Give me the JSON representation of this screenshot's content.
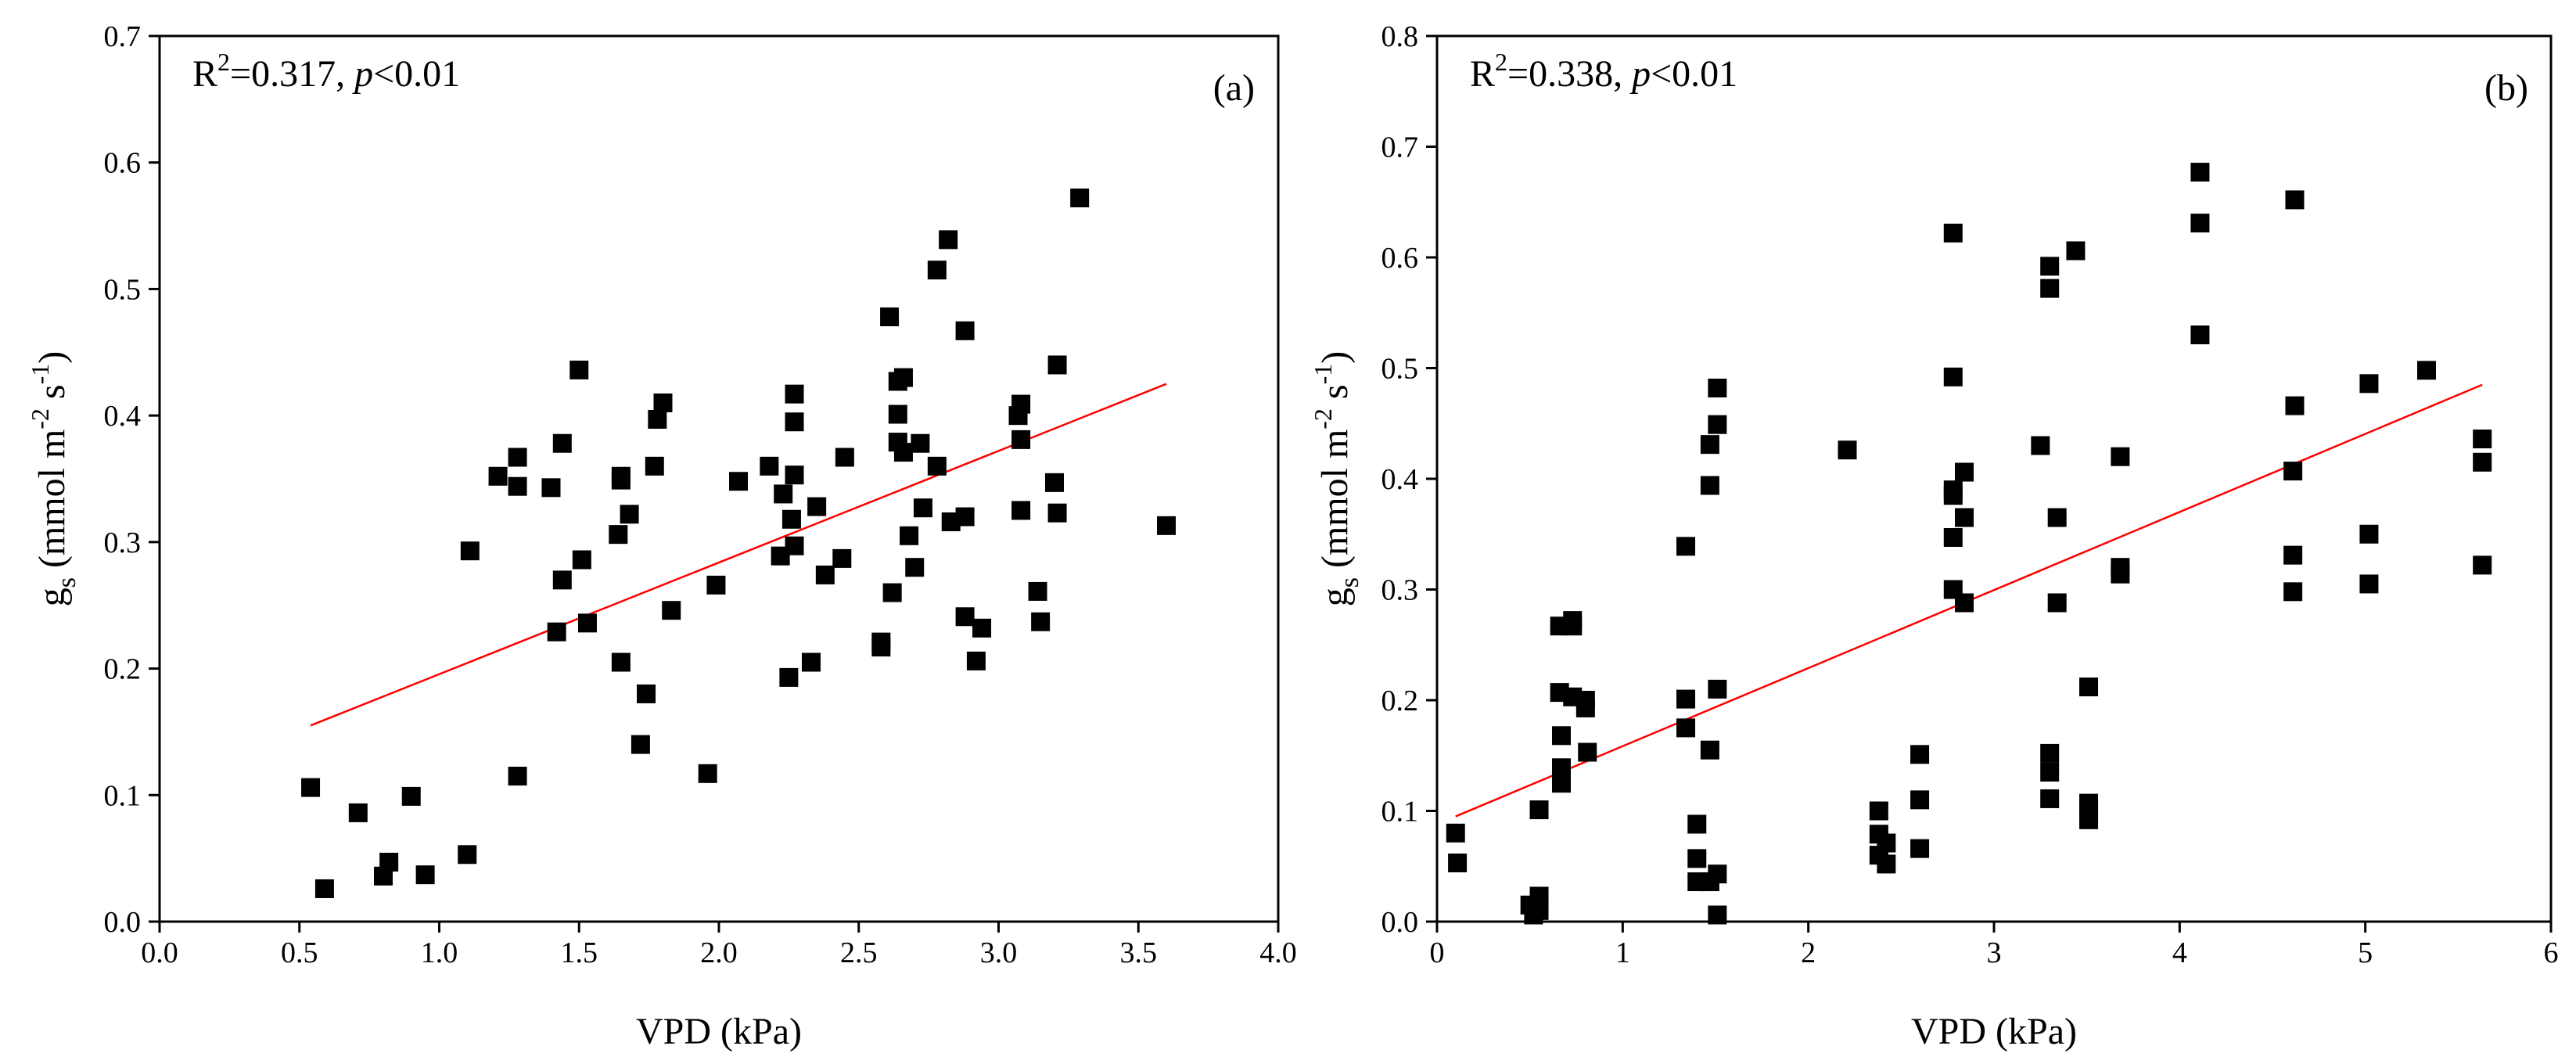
{
  "chart_data": [
    {
      "type": "scatter",
      "panel_label": "(a)",
      "annotation": {
        "r2_prefix": "R",
        "r2_sup": "2",
        "r2_value": "=0.317, ",
        "p_italic": "p",
        "p_rest": "<0.01"
      },
      "xlabel": "VPD (kPa)",
      "ylabel": {
        "main": "g",
        "sub": "s",
        "units_a": " (mmol m",
        "sup1": "-2",
        "units_b": " s",
        "sup2": "-1",
        "units_c": ")"
      },
      "xlim": [
        0,
        4
      ],
      "ylim": [
        0,
        0.7
      ],
      "xticks": [
        "0.0",
        "0.5",
        "1.0",
        "1.5",
        "2.0",
        "2.5",
        "3.0",
        "3.5",
        "4.0"
      ],
      "yticks": [
        "0.0",
        "0.1",
        "0.2",
        "0.3",
        "0.4",
        "0.5",
        "0.6",
        "0.7"
      ],
      "fit_line": {
        "x": [
          0.54,
          3.6
        ],
        "y": [
          0.155,
          0.425
        ],
        "color": "#ff0000"
      },
      "marker_color": "#000000",
      "points": [
        [
          0.54,
          0.106
        ],
        [
          0.59,
          0.026
        ],
        [
          0.71,
          0.086
        ],
        [
          0.8,
          0.036
        ],
        [
          0.82,
          0.047
        ],
        [
          0.9,
          0.099
        ],
        [
          0.95,
          0.037
        ],
        [
          1.1,
          0.053
        ],
        [
          1.11,
          0.293
        ],
        [
          1.21,
          0.352
        ],
        [
          1.28,
          0.115
        ],
        [
          1.28,
          0.344
        ],
        [
          1.28,
          0.367
        ],
        [
          1.4,
          0.343
        ],
        [
          1.42,
          0.229
        ],
        [
          1.44,
          0.27
        ],
        [
          1.44,
          0.378
        ],
        [
          1.5,
          0.436
        ],
        [
          1.51,
          0.286
        ],
        [
          1.53,
          0.236
        ],
        [
          1.64,
          0.306
        ],
        [
          1.65,
          0.205
        ],
        [
          1.65,
          0.349
        ],
        [
          1.65,
          0.352
        ],
        [
          1.68,
          0.322
        ],
        [
          1.72,
          0.14
        ],
        [
          1.74,
          0.18
        ],
        [
          1.77,
          0.36
        ],
        [
          1.78,
          0.397
        ],
        [
          1.8,
          0.41
        ],
        [
          1.83,
          0.246
        ],
        [
          1.96,
          0.117
        ],
        [
          1.99,
          0.266
        ],
        [
          2.07,
          0.348
        ],
        [
          2.18,
          0.36
        ],
        [
          2.22,
          0.289
        ],
        [
          2.23,
          0.338
        ],
        [
          2.25,
          0.193
        ],
        [
          2.26,
          0.318
        ],
        [
          2.27,
          0.353
        ],
        [
          2.27,
          0.395
        ],
        [
          2.27,
          0.417
        ],
        [
          2.27,
          0.297
        ],
        [
          2.33,
          0.205
        ],
        [
          2.35,
          0.328
        ],
        [
          2.38,
          0.274
        ],
        [
          2.44,
          0.287
        ],
        [
          2.45,
          0.367
        ],
        [
          2.58,
          0.221
        ],
        [
          2.58,
          0.217
        ],
        [
          2.61,
          0.478
        ],
        [
          2.62,
          0.26
        ],
        [
          2.64,
          0.427
        ],
        [
          2.64,
          0.401
        ],
        [
          2.64,
          0.379
        ],
        [
          2.66,
          0.43
        ],
        [
          2.66,
          0.371
        ],
        [
          2.68,
          0.305
        ],
        [
          2.7,
          0.28
        ],
        [
          2.72,
          0.378
        ],
        [
          2.73,
          0.327
        ],
        [
          2.78,
          0.515
        ],
        [
          2.78,
          0.36
        ],
        [
          2.82,
          0.539
        ],
        [
          2.83,
          0.316
        ],
        [
          2.88,
          0.467
        ],
        [
          2.88,
          0.32
        ],
        [
          2.88,
          0.241
        ],
        [
          2.92,
          0.206
        ],
        [
          2.94,
          0.232
        ],
        [
          3.07,
          0.4
        ],
        [
          3.08,
          0.409
        ],
        [
          3.08,
          0.381
        ],
        [
          3.08,
          0.325
        ],
        [
          3.14,
          0.261
        ],
        [
          3.15,
          0.237
        ],
        [
          3.2,
          0.347
        ],
        [
          3.21,
          0.44
        ],
        [
          3.21,
          0.323
        ],
        [
          3.29,
          0.572
        ],
        [
          3.6,
          0.313
        ]
      ]
    },
    {
      "type": "scatter",
      "panel_label": "(b)",
      "annotation": {
        "r2_prefix": "R",
        "r2_sup": "2",
        "r2_value": "=0.338, ",
        "p_italic": "p",
        "p_rest": "<0.01"
      },
      "xlabel": "VPD (kPa)",
      "ylabel": {
        "main": "g",
        "sub": "s",
        "units_a": " (mmol m",
        "sup1": "-2",
        "units_b": " s",
        "sup2": "-1",
        "units_c": ")"
      },
      "xlim": [
        0,
        6
      ],
      "ylim": [
        0,
        0.8
      ],
      "xticks": [
        "0",
        "1",
        "2",
        "3",
        "4",
        "5",
        "6"
      ],
      "yticks": [
        "0.0",
        "0.1",
        "0.2",
        "0.3",
        "0.4",
        "0.5",
        "0.6",
        "0.7",
        "0.8"
      ],
      "fit_line": {
        "x": [
          0.1,
          5.63
        ],
        "y": [
          0.095,
          0.485
        ],
        "color": "#ff0000"
      },
      "marker_color": "#000000",
      "points": [
        [
          0.1,
          0.08
        ],
        [
          0.11,
          0.053
        ],
        [
          0.5,
          0.015
        ],
        [
          0.52,
          0.006
        ],
        [
          0.55,
          0.023
        ],
        [
          0.55,
          0.101
        ],
        [
          0.55,
          0.01
        ],
        [
          0.66,
          0.267
        ],
        [
          0.66,
          0.207
        ],
        [
          0.67,
          0.168
        ],
        [
          0.67,
          0.139
        ],
        [
          0.67,
          0.125
        ],
        [
          0.73,
          0.272
        ],
        [
          0.73,
          0.267
        ],
        [
          0.73,
          0.203
        ],
        [
          0.8,
          0.2
        ],
        [
          0.8,
          0.193
        ],
        [
          0.81,
          0.153
        ],
        [
          1.34,
          0.339
        ],
        [
          1.34,
          0.201
        ],
        [
          1.34,
          0.175
        ],
        [
          1.4,
          0.088
        ],
        [
          1.4,
          0.057
        ],
        [
          1.4,
          0.036
        ],
        [
          1.47,
          0.431
        ],
        [
          1.47,
          0.394
        ],
        [
          1.47,
          0.155
        ],
        [
          1.47,
          0.036
        ],
        [
          1.51,
          0.482
        ],
        [
          1.51,
          0.449
        ],
        [
          1.51,
          0.21
        ],
        [
          1.51,
          0.043
        ],
        [
          1.51,
          0.006
        ],
        [
          2.21,
          0.426
        ],
        [
          2.38,
          0.1
        ],
        [
          2.38,
          0.079
        ],
        [
          2.38,
          0.06
        ],
        [
          2.42,
          0.071
        ],
        [
          2.42,
          0.052
        ],
        [
          2.6,
          0.151
        ],
        [
          2.6,
          0.11
        ],
        [
          2.6,
          0.066
        ],
        [
          2.78,
          0.622
        ],
        [
          2.78,
          0.492
        ],
        [
          2.78,
          0.39
        ],
        [
          2.78,
          0.385
        ],
        [
          2.78,
          0.347
        ],
        [
          2.78,
          0.3
        ],
        [
          2.84,
          0.406
        ],
        [
          2.84,
          0.365
        ],
        [
          2.84,
          0.288
        ],
        [
          3.25,
          0.43
        ],
        [
          3.3,
          0.592
        ],
        [
          3.3,
          0.572
        ],
        [
          3.3,
          0.152
        ],
        [
          3.3,
          0.135
        ],
        [
          3.3,
          0.111
        ],
        [
          3.34,
          0.365
        ],
        [
          3.34,
          0.288
        ],
        [
          3.44,
          0.606
        ],
        [
          3.51,
          0.212
        ],
        [
          3.51,
          0.107
        ],
        [
          3.51,
          0.1
        ],
        [
          3.51,
          0.092
        ],
        [
          3.68,
          0.42
        ],
        [
          3.68,
          0.32
        ],
        [
          3.68,
          0.314
        ],
        [
          4.11,
          0.677
        ],
        [
          4.11,
          0.631
        ],
        [
          4.11,
          0.53
        ],
        [
          4.61,
          0.407
        ],
        [
          4.61,
          0.331
        ],
        [
          4.61,
          0.298
        ],
        [
          4.62,
          0.652
        ],
        [
          4.62,
          0.466
        ],
        [
          5.02,
          0.486
        ],
        [
          5.02,
          0.35
        ],
        [
          5.02,
          0.305
        ],
        [
          5.33,
          0.498
        ],
        [
          5.63,
          0.436
        ],
        [
          5.63,
          0.415
        ],
        [
          5.63,
          0.322
        ]
      ]
    }
  ]
}
